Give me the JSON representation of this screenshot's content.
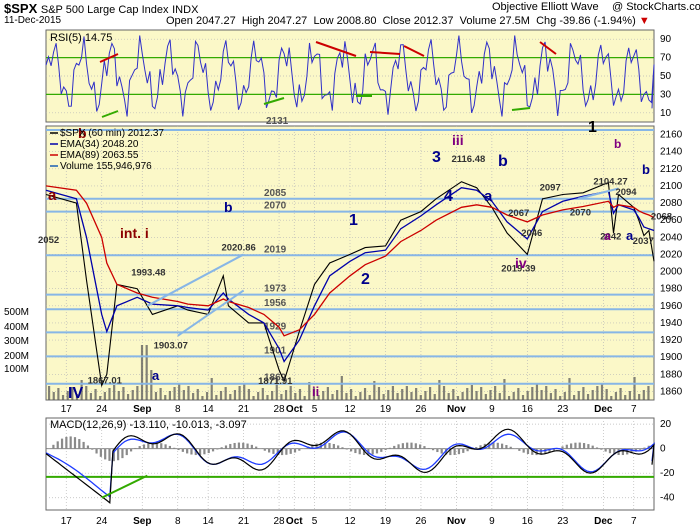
{
  "header": {
    "symbol": "$SPX",
    "name": "S&P 500 Large Cap Index",
    "exchange": "INDX",
    "date": "11-Dec-2015",
    "open": "Open 2047.27",
    "high": "High 2047.27",
    "low": "Low 2008.80",
    "close": "Close 2012.37",
    "volume": "Volume 27.5M",
    "chg": "Chg -39.86 (-1.94%)",
    "chg_arrow": "▼",
    "credit": "Objective Elliott Wave",
    "watermark": "@ StockCharts.com"
  },
  "rsi": {
    "label": "RSI(5) 14.75",
    "ticks": [
      "90",
      "70",
      "50",
      "30",
      "10"
    ]
  },
  "price_legend": [
    {
      "text": "$SPX (60 min) 2012.37",
      "color": "#000000"
    },
    {
      "text": "EMA(34) 2048.20",
      "color": "#0000aa"
    },
    {
      "text": "EMA(89) 2063.55",
      "color": "#cc0000"
    },
    {
      "text": "Volume 155,946,976",
      "color": "#1a5fb4"
    }
  ],
  "price_axis": [
    "2160",
    "2140",
    "2120",
    "2100",
    "2080",
    "2060",
    "2040",
    "2020",
    "2000",
    "1980",
    "1960",
    "1940",
    "1920",
    "1900",
    "1880",
    "1860"
  ],
  "volume_axis": [
    "500M",
    "400M",
    "300M",
    "200M",
    "100M"
  ],
  "macd": {
    "label": "MACD(12,26,9) -13.110, -10.013, -3.097",
    "ticks": [
      "20",
      "0",
      "-20",
      "-40"
    ]
  },
  "x_labels": [
    {
      "text": "17",
      "bold": false
    },
    {
      "text": "24",
      "bold": false
    },
    {
      "text": "Sep",
      "bold": true
    },
    {
      "text": "8",
      "bold": false
    },
    {
      "text": "14",
      "bold": false
    },
    {
      "text": "21",
      "bold": false
    },
    {
      "text": "28",
      "bold": false
    },
    {
      "text": "Oct",
      "bold": true
    },
    {
      "text": "5",
      "bold": false
    },
    {
      "text": "12",
      "bold": false
    },
    {
      "text": "19",
      "bold": false
    },
    {
      "text": "26",
      "bold": false
    },
    {
      "text": "Nov",
      "bold": true
    },
    {
      "text": "9",
      "bold": false
    },
    {
      "text": "16",
      "bold": false
    },
    {
      "text": "23",
      "bold": false
    },
    {
      "text": "Dec",
      "bold": true
    },
    {
      "text": "7",
      "bold": false
    }
  ],
  "fib_levels": [
    {
      "value": 2085,
      "label": "2085"
    },
    {
      "value": 2070,
      "label": "2070"
    },
    {
      "value": 2019,
      "label": "2019"
    },
    {
      "value": 1973,
      "label": "1973"
    },
    {
      "value": 1956,
      "label": "1956"
    },
    {
      "value": 1929,
      "label": "1929"
    },
    {
      "value": 1901,
      "label": "1901"
    },
    {
      "value": 1869,
      "label": "1869"
    },
    {
      "value": 2131,
      "label": "2131"
    }
  ],
  "price_annotations": [
    {
      "text": "2052"
    },
    {
      "text": "1993.48"
    },
    {
      "text": "2020.86"
    },
    {
      "text": "1903.07"
    },
    {
      "text": "1867.01"
    },
    {
      "text": "1871.91"
    },
    {
      "text": "2116.48"
    },
    {
      "text": "2019.39"
    },
    {
      "text": "2104.27"
    },
    {
      "text": "2097"
    },
    {
      "text": "2094"
    },
    {
      "text": "2067"
    },
    {
      "text": "2046"
    },
    {
      "text": "2070"
    },
    {
      "text": "2042"
    },
    {
      "text": "2037"
    },
    {
      "text": "2068"
    }
  ],
  "wave_labels": [
    {
      "text": "a",
      "color": "#8b0000"
    },
    {
      "text": "b",
      "color": "#8b0000"
    },
    {
      "text": "int. i",
      "color": "#8b0000"
    },
    {
      "text": "b",
      "color": "#00008b"
    },
    {
      "text": "a",
      "color": "#00008b"
    },
    {
      "text": "IV",
      "color": "#00008b"
    },
    {
      "text": "ii",
      "color": "#800080"
    },
    {
      "text": "1",
      "color": "#00008b"
    },
    {
      "text": "2",
      "color": "#00008b"
    },
    {
      "text": "iii",
      "color": "#800080"
    },
    {
      "text": "3",
      "color": "#00008b"
    },
    {
      "text": "4",
      "color": "#00008b"
    },
    {
      "text": "b",
      "color": "#00008b"
    },
    {
      "text": "a",
      "color": "#00008b"
    },
    {
      "text": "iv",
      "color": "#800080"
    },
    {
      "text": "1",
      "color": "#000000"
    },
    {
      "text": "b",
      "color": "#800080"
    },
    {
      "text": "a",
      "color": "#800080"
    },
    {
      "text": "a",
      "color": "#00008b"
    },
    {
      "text": "b",
      "color": "#00008b"
    }
  ],
  "chart_data": {
    "type": "line",
    "title": "$SPX S&P 500 Large Cap Index INDX",
    "xlabel": "",
    "ylabel": "",
    "ylim": [
      1850,
      2170
    ],
    "date_range": [
      "2015-08-13",
      "2015-12-11"
    ],
    "x": [
      "2015-08-13",
      "2015-08-19",
      "2015-08-21",
      "2015-08-24",
      "2015-08-25",
      "2015-08-27",
      "2015-08-31",
      "2015-09-03",
      "2015-09-08",
      "2015-09-10",
      "2015-09-14",
      "2015-09-17",
      "2015-09-18",
      "2015-09-22",
      "2015-09-25",
      "2015-09-28",
      "2015-09-29",
      "2015-10-02",
      "2015-10-05",
      "2015-10-08",
      "2015-10-12",
      "2015-10-15",
      "2015-10-19",
      "2015-10-22",
      "2015-10-26",
      "2015-10-29",
      "2015-11-03",
      "2015-11-06",
      "2015-11-09",
      "2015-11-12",
      "2015-11-16",
      "2015-11-19",
      "2015-11-23",
      "2015-11-27",
      "2015-12-02",
      "2015-12-03",
      "2015-12-04",
      "2015-12-07",
      "2015-12-08",
      "2015-12-09",
      "2015-12-10",
      "2015-12-11"
    ],
    "series": [
      {
        "name": "$SPX (60 min)",
        "values": [
          2090,
          2080,
          1990,
          1867,
          1880,
          1985,
          1980,
          1950,
          1960,
          1955,
          1950,
          1995,
          1960,
          1940,
          1940,
          1885,
          1872,
          1930,
          1985,
          2010,
          2020,
          2028,
          2030,
          2060,
          2070,
          2085,
          2105,
          2098,
          2075,
          2045,
          2020,
          2085,
          2090,
          2092,
          2104,
          2045,
          2090,
          2075,
          2060,
          2042,
          2048,
          2012
        ]
      },
      {
        "name": "EMA(34)",
        "values": [
          2095,
          2085,
          2040,
          1950,
          1930,
          1960,
          1970,
          1962,
          1960,
          1958,
          1955,
          1975,
          1968,
          1950,
          1940,
          1910,
          1895,
          1920,
          1960,
          1995,
          2012,
          2022,
          2025,
          2050,
          2065,
          2078,
          2098,
          2095,
          2082,
          2058,
          2038,
          2070,
          2082,
          2088,
          2094,
          2068,
          2078,
          2072,
          2063,
          2052,
          2050,
          2048
        ]
      },
      {
        "name": "EMA(89)",
        "values": [
          2100,
          2095,
          2080,
          2040,
          2010,
          1985,
          1975,
          1970,
          1965,
          1962,
          1960,
          1968,
          1965,
          1958,
          1950,
          1935,
          1925,
          1932,
          1950,
          1975,
          1995,
          2008,
          2018,
          2035,
          2048,
          2060,
          2075,
          2078,
          2075,
          2066,
          2058,
          2066,
          2072,
          2076,
          2082,
          2075,
          2078,
          2075,
          2071,
          2068,
          2066,
          2063
        ]
      }
    ],
    "rsi_series": {
      "name": "RSI(5)",
      "ylim": [
        0,
        100
      ],
      "last": 14.75
    },
    "macd_series": [
      {
        "name": "MACD(12,26,9)",
        "last": -13.11
      },
      {
        "name": "Signal",
        "last": -10.013
      },
      {
        "name": "Histogram",
        "last": -3.097
      }
    ],
    "macd_ylim": [
      -50,
      25
    ],
    "grid": true,
    "legend": "top-left"
  },
  "colors": {
    "price_bg": "#fbf8c8",
    "rsi_bg": "#fbf8c8",
    "macd_bg": "#ffffff",
    "fib_line": "#87b6e6",
    "ema34": "#0000aa",
    "ema89": "#cc0000",
    "price": "#000000",
    "volume": "#5a5a5a",
    "macd_line": "#000000",
    "signal_line": "#1f3cff",
    "zero_line": "#33aa00"
  }
}
